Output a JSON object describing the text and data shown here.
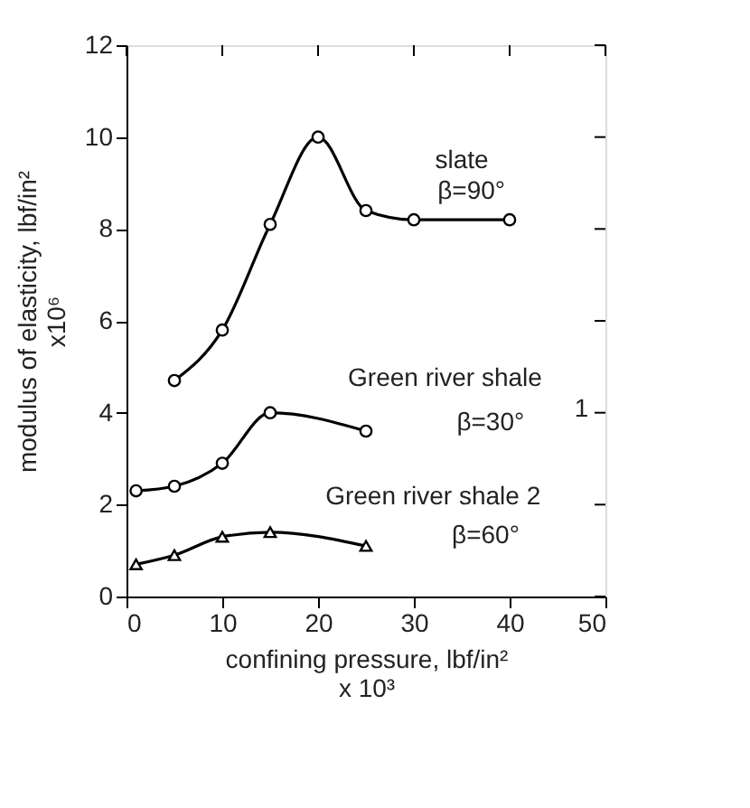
{
  "chart_data": {
    "type": "line",
    "xlabel": "confining pressure, lbf/in²\nx 10³",
    "ylabel": "modulus of elasticity, lbf/in²\nx10⁶",
    "xlim": [
      0,
      50
    ],
    "xticks": [
      0,
      10,
      20,
      30,
      40,
      50
    ],
    "ylim": [
      0,
      12
    ],
    "yticks": [
      0,
      2,
      4,
      6,
      8,
      10,
      12
    ],
    "grid": false,
    "line_style": "solid",
    "series": [
      {
        "color": "#000000",
        "marker": "circle",
        "x": [
          5,
          10,
          15,
          20,
          25,
          30,
          40
        ],
        "values": [
          4.7,
          5.8,
          8.1,
          10.0,
          8.4,
          8.2,
          8.2
        ]
      },
      {
        "color": "#000000",
        "marker": "circle",
        "x": [
          1,
          5,
          10,
          15,
          25
        ],
        "values": [
          2.3,
          2.4,
          2.9,
          4.0,
          3.6
        ]
      },
      {
        "color": "#000000",
        "marker": "triangle",
        "x": [
          1,
          5,
          10,
          15,
          25
        ],
        "values": [
          0.7,
          0.9,
          1.3,
          1.4,
          1.1
        ]
      }
    ],
    "annotations": [
      "slate",
      "β=90°",
      "Green river shale",
      "β=30°",
      "1",
      "Green river shale 2",
      "β=60°"
    ]
  }
}
